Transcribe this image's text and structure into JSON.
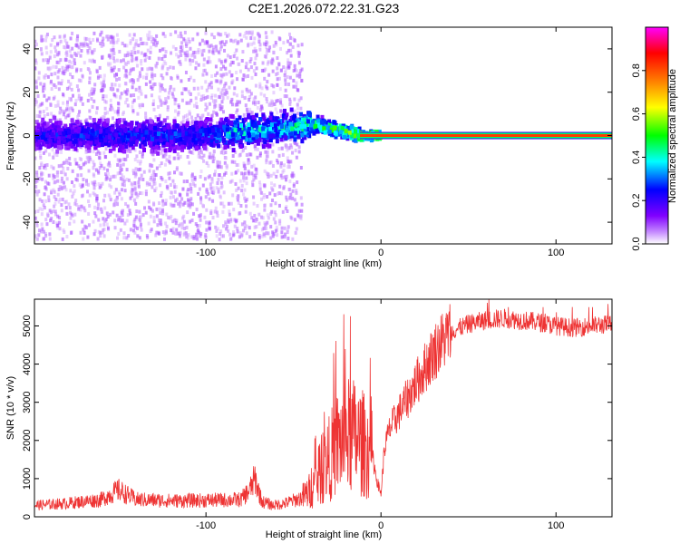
{
  "title": "C2E1.2026.072.22.31.G23",
  "chart_data": [
    {
      "type": "heatmap",
      "name": "spectrogram",
      "xlabel": "Height of straight line (km)",
      "ylabel": "Frequency (Hz)",
      "xlim": [
        -198,
        132
      ],
      "ylim": [
        -50,
        50
      ],
      "xticks": [
        -100,
        0,
        100
      ],
      "yticks": [
        -40,
        -20,
        0,
        20,
        40
      ],
      "x_tick_labels": [
        "-100",
        "0",
        "100"
      ],
      "y_tick_labels": [
        "-40",
        "-20",
        "0",
        "20",
        "40"
      ],
      "colorbar": {
        "label": "Normalized spectral amplitude",
        "range": [
          0,
          1
        ],
        "ticks": [
          0.0,
          0.2,
          0.4,
          0.6,
          0.8
        ],
        "tick_labels": [
          "0.0",
          "0.2",
          "0.4",
          "0.6",
          "0.8"
        ],
        "colors": [
          "#ffffff",
          "#8000ff",
          "#0000ff",
          "#00ffff",
          "#00ff00",
          "#ffff00",
          "#ff8000",
          "#ff0000",
          "#ff00ff"
        ]
      },
      "ridge": [
        {
          "x": -198,
          "f": 0,
          "amp": 0.25
        },
        {
          "x": -150,
          "f": 0,
          "amp": 0.3
        },
        {
          "x": -100,
          "f": 0,
          "amp": 0.3
        },
        {
          "x": -80,
          "f": 2,
          "amp": 0.45
        },
        {
          "x": -60,
          "f": 3,
          "amp": 0.4
        },
        {
          "x": -40,
          "f": 5,
          "amp": 0.5
        },
        {
          "x": -20,
          "f": 2,
          "amp": 0.55
        },
        {
          "x": -10,
          "f": 0,
          "amp": 0.65
        },
        {
          "x": 0,
          "f": 0,
          "amp": 0.75
        },
        {
          "x": 50,
          "f": 0,
          "amp": 0.8
        },
        {
          "x": 100,
          "f": 0,
          "amp": 0.8
        },
        {
          "x": 132,
          "f": 0,
          "amp": 0.8
        }
      ]
    },
    {
      "type": "line",
      "name": "snr",
      "xlabel": "Height of straight line (km)",
      "ylabel": "SNR (10 * v/v)",
      "xlim": [
        -198,
        132
      ],
      "ylim": [
        0,
        5700
      ],
      "xticks": [
        -100,
        0,
        100
      ],
      "yticks": [
        0,
        1000,
        2000,
        3000,
        4000,
        5000
      ],
      "x_tick_labels": [
        "-100",
        "0",
        "100"
      ],
      "y_tick_labels": [
        "0",
        "1000",
        "2000",
        "3000",
        "4000",
        "5000"
      ],
      "series": [
        {
          "name": "SNR",
          "color": "#ee3333",
          "x": [
            -198,
            -180,
            -160,
            -150,
            -140,
            -120,
            -100,
            -80,
            -75,
            -72,
            -68,
            -62,
            -55,
            -45,
            -40,
            -35,
            -30,
            -25,
            -20,
            -15,
            -10,
            -5,
            -2,
            0,
            2,
            5,
            10,
            15,
            20,
            25,
            30,
            35,
            40,
            50,
            60,
            70,
            80,
            90,
            100,
            110,
            120,
            132
          ],
          "values": [
            300,
            350,
            450,
            700,
            450,
            420,
            430,
            450,
            700,
            1000,
            400,
            300,
            350,
            500,
            700,
            1100,
            1500,
            1900,
            2100,
            2100,
            1900,
            1600,
            900,
            600,
            1800,
            2300,
            2700,
            3100,
            3500,
            3900,
            4300,
            4600,
            4850,
            5050,
            5150,
            5200,
            5150,
            5100,
            5000,
            4950,
            5000,
            5050
          ]
        }
      ]
    }
  ]
}
